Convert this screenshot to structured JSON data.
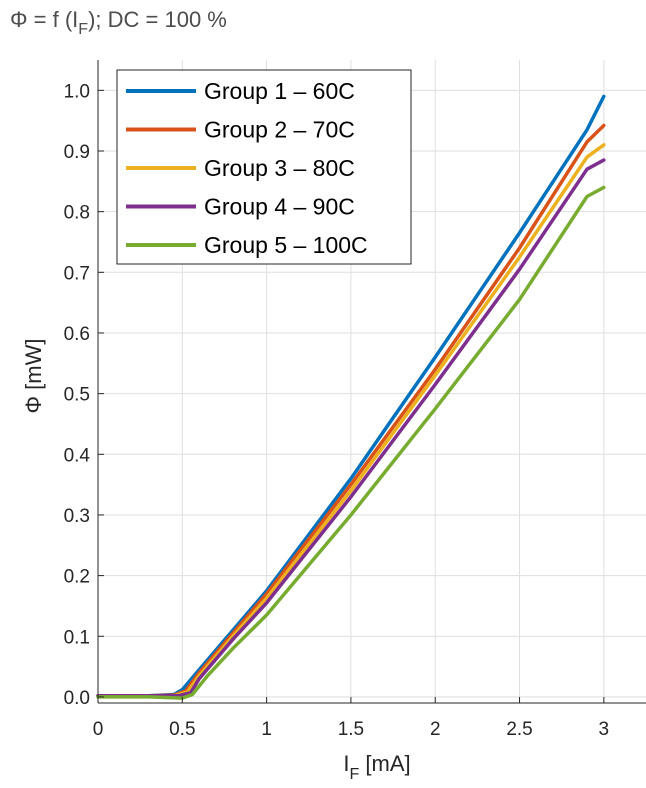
{
  "chart_data": {
    "type": "line",
    "title": "Φ = f (I_F); DC = 100 %",
    "title_parts": {
      "pre": "Φ = f (I",
      "sub": "F",
      "post": "); DC = 100 %"
    },
    "xlabel": "I_F [mA]",
    "xlabel_parts": {
      "pre": "I",
      "sub": "F",
      "post": " [mA]"
    },
    "ylabel": "Φ [mW]",
    "xlim": [
      0,
      3.25
    ],
    "ylim": [
      -0.01,
      1.05
    ],
    "xticks": [
      0,
      0.5,
      1,
      1.5,
      2,
      2.5,
      3
    ],
    "xtick_labels": [
      "0",
      "0.5",
      "1",
      "1.5",
      "2",
      "2.5",
      "3"
    ],
    "yticks": [
      0,
      0.1,
      0.2,
      0.3,
      0.4,
      0.5,
      0.6,
      0.7,
      0.8,
      0.9,
      1.0
    ],
    "ytick_labels": [
      "0.0",
      "0.1",
      "0.2",
      "0.3",
      "0.4",
      "0.5",
      "0.6",
      "0.7",
      "0.8",
      "0.9",
      "1.0"
    ],
    "grid": true,
    "legend_position": "top-left",
    "series": [
      {
        "name": "Group 1 –   60C",
        "color": "#0072BD",
        "x": [
          0,
          0.3,
          0.45,
          0.5,
          0.6,
          0.8,
          1.0,
          1.5,
          2.0,
          2.5,
          2.9,
          3.0
        ],
        "y": [
          0.002,
          0.002,
          0.004,
          0.012,
          0.045,
          0.11,
          0.175,
          0.36,
          0.56,
          0.765,
          0.935,
          0.99
        ]
      },
      {
        "name": "Group 2 –   70C",
        "color": "#D95319",
        "x": [
          0,
          0.3,
          0.45,
          0.52,
          0.6,
          0.8,
          1.0,
          1.5,
          2.0,
          2.5,
          2.9,
          3.0
        ],
        "y": [
          0.002,
          0.002,
          0.003,
          0.01,
          0.04,
          0.105,
          0.17,
          0.35,
          0.54,
          0.74,
          0.915,
          0.942
        ]
      },
      {
        "name": "Group 3 –   80C",
        "color": "#EDB120",
        "x": [
          0,
          0.3,
          0.45,
          0.53,
          0.6,
          0.8,
          1.0,
          1.5,
          2.0,
          2.5,
          2.9,
          3.0
        ],
        "y": [
          0.002,
          0.002,
          0.002,
          0.008,
          0.035,
          0.1,
          0.163,
          0.34,
          0.53,
          0.725,
          0.89,
          0.91
        ]
      },
      {
        "name": "Group 4 –   90C",
        "color": "#7E2F8E",
        "x": [
          0,
          0.3,
          0.48,
          0.55,
          0.6,
          0.8,
          1.0,
          1.5,
          2.0,
          2.5,
          2.9,
          3.0
        ],
        "y": [
          0.002,
          0.002,
          0.002,
          0.007,
          0.03,
          0.095,
          0.155,
          0.33,
          0.515,
          0.705,
          0.87,
          0.885
        ]
      },
      {
        "name": "Group 5 – 100C",
        "color": "#77AC30",
        "x": [
          0,
          0.3,
          0.5,
          0.56,
          0.65,
          0.8,
          1.0,
          1.5,
          2.0,
          2.5,
          2.9,
          3.0
        ],
        "y": [
          0.0,
          0.0,
          -0.002,
          0.004,
          0.035,
          0.08,
          0.135,
          0.3,
          0.475,
          0.655,
          0.825,
          0.84
        ]
      }
    ]
  }
}
